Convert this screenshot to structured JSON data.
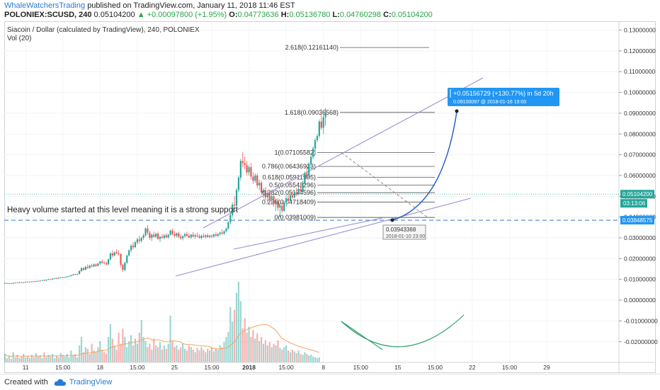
{
  "header": {
    "author": "WhaleWatchersTrading",
    "published_text": "published on TradingView.com, January 11, 2018 11:46 EST",
    "symbol": "POLONIEX:SCUSD, 240",
    "last": "0.05104200",
    "change": "▲ +0.00097800 (+1.95%)",
    "o_label": "O:",
    "o_val": "0.04773636",
    "h_label": "H:",
    "h_val": "0.05136780",
    "l_label": "L:",
    "l_val": "0.04760298",
    "c_label": "C:",
    "c_val": "0.05104200"
  },
  "legend": {
    "title": "Siacoin / Dollar (calculated by TradingView), 240, POLONIEX",
    "vol": "Vol (20)"
  },
  "annotation": "Heavy volume started at this level meaning it is a strong support",
  "footer": {
    "created_with": "Created with",
    "brand": "TradingView"
  },
  "colors": {
    "up": "#26a69a",
    "down": "#ef5350",
    "channel": "#9b8fd4",
    "arc": "#2a62c4",
    "support": "#5b8fd6",
    "price_line": "#26a69a",
    "volume_ma": "#f4a460"
  },
  "chart_data": {
    "type": "candlestick",
    "title": "Siacoin / Dollar (calculated by TradingView), 240, POLONIEX",
    "ylim": [
      -0.027,
      0.135
    ],
    "y_ticks": [
      "0.13000000",
      "0.12000000",
      "0.11000000",
      "0.10000000",
      "0.09000000",
      "0.08000000",
      "0.07000000",
      "0.06000000",
      "0.05000000",
      "0.04000000",
      "0.03000000",
      "0.02000000",
      "0.01000000",
      "0.00000000",
      "-0.01000000",
      "-0.02000000"
    ],
    "y_tick_values": [
      0.13,
      0.12,
      0.11,
      0.1,
      0.09,
      0.08,
      0.07,
      0.06,
      0.05,
      0.04,
      0.03,
      0.02,
      0.01,
      0.0,
      -0.01,
      -0.02
    ],
    "x_ticks": [
      "11",
      "15:00",
      "18",
      "15:00",
      "25",
      "15:00",
      "2018",
      "15:00",
      "8",
      "15:00",
      "15",
      "15:00",
      "22",
      "15:00",
      "29"
    ],
    "x_tick_bars": [
      10,
      28,
      46,
      64,
      82,
      100,
      118,
      136,
      154,
      172,
      190,
      208,
      226,
      244,
      262
    ],
    "current_price": "0.05104200",
    "countdown": "03:13:06",
    "support_price": "0.03848575",
    "fib_levels": [
      {
        "label": "2.618(0.12161140)",
        "value": 0.1216114
      },
      {
        "label": "1.618(0.09036568)",
        "value": 0.09036568
      },
      {
        "label": "1(0.07105582)",
        "value": 0.07105582
      },
      {
        "label": "0.786(0.06436923)",
        "value": 0.06436923
      },
      {
        "label": "0.618(0.05911995)",
        "value": 0.05911995
      },
      {
        "label": "0.5(0.05543296)",
        "value": 0.05543296
      },
      {
        "label": "0.382(0.05174596)",
        "value": 0.05174596
      },
      {
        "label": "0.236(0.04718409)",
        "value": 0.04718409
      },
      {
        "label": "0(0.03981009)",
        "value": 0.03981009
      }
    ],
    "measure_label": "+0.05156729 (+130.77%) in 5d 20h",
    "measure_sub": "0.09100097  @ 2018-01-16  19:00",
    "low_label": "0.03943368",
    "low_date": "2018-01-10 23:00",
    "candles": [
      [
        0.008,
        0.0085,
        0.0078,
        0.0082
      ],
      [
        0.0082,
        0.0084,
        0.0079,
        0.008
      ],
      [
        0.008,
        0.0083,
        0.0078,
        0.0081
      ],
      [
        0.0081,
        0.0083,
        0.0079,
        0.0079
      ],
      [
        0.0079,
        0.0084,
        0.0078,
        0.0083
      ],
      [
        0.0083,
        0.0086,
        0.0081,
        0.0084
      ],
      [
        0.0084,
        0.0087,
        0.0082,
        0.0083
      ],
      [
        0.0083,
        0.0088,
        0.0082,
        0.0086
      ],
      [
        0.0086,
        0.0088,
        0.0083,
        0.0084
      ],
      [
        0.0084,
        0.0087,
        0.0082,
        0.0086
      ],
      [
        0.0086,
        0.009,
        0.0084,
        0.0088
      ],
      [
        0.0088,
        0.009,
        0.0085,
        0.0086
      ],
      [
        0.0086,
        0.0089,
        0.0084,
        0.0088
      ],
      [
        0.0088,
        0.0092,
        0.0086,
        0.009
      ],
      [
        0.009,
        0.0093,
        0.0087,
        0.0089
      ],
      [
        0.0089,
        0.0093,
        0.0087,
        0.0092
      ],
      [
        0.0092,
        0.0095,
        0.0089,
        0.0091
      ],
      [
        0.0091,
        0.0095,
        0.0089,
        0.0094
      ],
      [
        0.0094,
        0.0098,
        0.0092,
        0.0096
      ],
      [
        0.0096,
        0.0099,
        0.0093,
        0.0094
      ],
      [
        0.0094,
        0.01,
        0.0093,
        0.0098
      ],
      [
        0.0098,
        0.0103,
        0.0096,
        0.0101
      ],
      [
        0.0101,
        0.0104,
        0.0098,
        0.0099
      ],
      [
        0.0099,
        0.0105,
        0.0098,
        0.0103
      ],
      [
        0.0103,
        0.0108,
        0.0101,
        0.0106
      ],
      [
        0.0106,
        0.0109,
        0.0103,
        0.0104
      ],
      [
        0.0104,
        0.011,
        0.0103,
        0.0108
      ],
      [
        0.0108,
        0.0112,
        0.0106,
        0.011
      ],
      [
        0.011,
        0.0113,
        0.0107,
        0.0108
      ],
      [
        0.0108,
        0.0113,
        0.0107,
        0.0111
      ],
      [
        0.0111,
        0.0116,
        0.0109,
        0.0114
      ],
      [
        0.0114,
        0.0118,
        0.0112,
        0.0116
      ],
      [
        0.0116,
        0.0122,
        0.0114,
        0.012
      ],
      [
        0.012,
        0.0126,
        0.0118,
        0.0124
      ],
      [
        0.0124,
        0.0128,
        0.012,
        0.0122
      ],
      [
        0.0122,
        0.0128,
        0.0121,
        0.0126
      ],
      [
        0.0126,
        0.0145,
        0.0124,
        0.014
      ],
      [
        0.014,
        0.016,
        0.0136,
        0.0154
      ],
      [
        0.0154,
        0.0158,
        0.0142,
        0.0146
      ],
      [
        0.0146,
        0.0165,
        0.0144,
        0.016
      ],
      [
        0.016,
        0.0172,
        0.015,
        0.0155
      ],
      [
        0.0155,
        0.017,
        0.0152,
        0.0166
      ],
      [
        0.0166,
        0.0175,
        0.0158,
        0.0162
      ],
      [
        0.0162,
        0.0176,
        0.016,
        0.0172
      ],
      [
        0.0172,
        0.0178,
        0.016,
        0.0165
      ],
      [
        0.0165,
        0.018,
        0.0163,
        0.0176
      ],
      [
        0.0176,
        0.019,
        0.017,
        0.0186
      ],
      [
        0.0186,
        0.0195,
        0.0175,
        0.018
      ],
      [
        0.018,
        0.0188,
        0.0172,
        0.0178
      ],
      [
        0.0178,
        0.0186,
        0.0168,
        0.0172
      ],
      [
        0.0172,
        0.02,
        0.017,
        0.0196
      ],
      [
        0.0196,
        0.023,
        0.0192,
        0.0225
      ],
      [
        0.0225,
        0.024,
        0.0205,
        0.0215
      ],
      [
        0.0215,
        0.0235,
        0.021,
        0.023
      ],
      [
        0.023,
        0.0245,
        0.022,
        0.0226
      ],
      [
        0.0226,
        0.024,
        0.0215,
        0.0222
      ],
      [
        0.0222,
        0.0225,
        0.016,
        0.017
      ],
      [
        0.017,
        0.0175,
        0.0135,
        0.0145
      ],
      [
        0.0145,
        0.0185,
        0.014,
        0.018
      ],
      [
        0.018,
        0.022,
        0.0175,
        0.0215
      ],
      [
        0.0215,
        0.0245,
        0.021,
        0.024
      ],
      [
        0.024,
        0.027,
        0.023,
        0.0262
      ],
      [
        0.0262,
        0.028,
        0.0245,
        0.0255
      ],
      [
        0.0255,
        0.0285,
        0.025,
        0.0278
      ],
      [
        0.0278,
        0.03,
        0.0268,
        0.0292
      ],
      [
        0.0292,
        0.031,
        0.0272,
        0.0285
      ],
      [
        0.0285,
        0.0305,
        0.0276,
        0.03
      ],
      [
        0.03,
        0.032,
        0.029,
        0.0312
      ],
      [
        0.0312,
        0.035,
        0.0305,
        0.0345
      ],
      [
        0.0345,
        0.036,
        0.0315,
        0.0325
      ],
      [
        0.0325,
        0.0335,
        0.029,
        0.03
      ],
      [
        0.03,
        0.032,
        0.0285,
        0.0315
      ],
      [
        0.0315,
        0.033,
        0.03,
        0.0305
      ],
      [
        0.0305,
        0.0325,
        0.0298,
        0.032
      ],
      [
        0.032,
        0.033,
        0.029,
        0.0295
      ],
      [
        0.0295,
        0.031,
        0.028,
        0.0305
      ],
      [
        0.0305,
        0.032,
        0.0295,
        0.03
      ],
      [
        0.03,
        0.0318,
        0.0292,
        0.0312
      ],
      [
        0.0312,
        0.0322,
        0.0298,
        0.0302
      ],
      [
        0.0302,
        0.032,
        0.0295,
        0.0315
      ],
      [
        0.0315,
        0.034,
        0.031,
        0.0335
      ],
      [
        0.0335,
        0.0345,
        0.0312,
        0.0318
      ],
      [
        0.0318,
        0.0332,
        0.03,
        0.031
      ],
      [
        0.031,
        0.0326,
        0.0302,
        0.0322
      ],
      [
        0.0322,
        0.033,
        0.0298,
        0.0305
      ],
      [
        0.0305,
        0.0318,
        0.029,
        0.0298
      ],
      [
        0.0298,
        0.0312,
        0.0288,
        0.0308
      ],
      [
        0.0308,
        0.0325,
        0.03,
        0.0318
      ],
      [
        0.0318,
        0.033,
        0.0305,
        0.031
      ],
      [
        0.031,
        0.0322,
        0.0298,
        0.0302
      ],
      [
        0.0302,
        0.0318,
        0.0295,
        0.0315
      ],
      [
        0.0315,
        0.0328,
        0.0302,
        0.0306
      ],
      [
        0.0306,
        0.032,
        0.0296,
        0.0312
      ],
      [
        0.0312,
        0.0325,
        0.0302,
        0.0308
      ],
      [
        0.0308,
        0.0318,
        0.0296,
        0.03
      ],
      [
        0.03,
        0.0315,
        0.0292,
        0.031
      ],
      [
        0.031,
        0.0322,
        0.03,
        0.0305
      ],
      [
        0.0305,
        0.0316,
        0.0296,
        0.0312
      ],
      [
        0.0312,
        0.032,
        0.03,
        0.0304
      ],
      [
        0.0304,
        0.0315,
        0.0298,
        0.031
      ],
      [
        0.031,
        0.0318,
        0.03,
        0.0306
      ],
      [
        0.0306,
        0.032,
        0.03,
        0.0316
      ],
      [
        0.0316,
        0.0326,
        0.0305,
        0.031
      ],
      [
        0.031,
        0.0322,
        0.0304,
        0.0318
      ],
      [
        0.0318,
        0.033,
        0.031,
        0.0325
      ],
      [
        0.0325,
        0.034,
        0.0315,
        0.032
      ],
      [
        0.032,
        0.0336,
        0.0314,
        0.0332
      ],
      [
        0.0332,
        0.035,
        0.0325,
        0.0345
      ],
      [
        0.0345,
        0.038,
        0.034,
        0.0375
      ],
      [
        0.0375,
        0.042,
        0.0365,
        0.041
      ],
      [
        0.041,
        0.047,
        0.04,
        0.046
      ],
      [
        0.046,
        0.05,
        0.044,
        0.0455
      ],
      [
        0.0455,
        0.054,
        0.045,
        0.053
      ],
      [
        0.053,
        0.06,
        0.052,
        0.059
      ],
      [
        0.059,
        0.068,
        0.0575,
        0.067
      ],
      [
        0.067,
        0.0712,
        0.064,
        0.066
      ],
      [
        0.066,
        0.069,
        0.063,
        0.065
      ],
      [
        0.065,
        0.067,
        0.06,
        0.0615
      ],
      [
        0.0615,
        0.065,
        0.06,
        0.064
      ],
      [
        0.064,
        0.066,
        0.058,
        0.0595
      ],
      [
        0.0595,
        0.0615,
        0.056,
        0.0575
      ],
      [
        0.0575,
        0.061,
        0.0565,
        0.06
      ],
      [
        0.06,
        0.061,
        0.054,
        0.0552
      ],
      [
        0.0552,
        0.058,
        0.053,
        0.0565
      ],
      [
        0.0565,
        0.0575,
        0.0505,
        0.0518
      ],
      [
        0.0518,
        0.054,
        0.049,
        0.053
      ],
      [
        0.053,
        0.0545,
        0.048,
        0.0495
      ],
      [
        0.0495,
        0.0525,
        0.047,
        0.0515
      ],
      [
        0.0515,
        0.053,
        0.0468,
        0.0482
      ],
      [
        0.0482,
        0.051,
        0.046,
        0.05
      ],
      [
        0.05,
        0.0512,
        0.045,
        0.0462
      ],
      [
        0.0462,
        0.049,
        0.043,
        0.0475
      ],
      [
        0.0475,
        0.049,
        0.043,
        0.0445
      ],
      [
        0.0445,
        0.047,
        0.0398,
        0.0455
      ],
      [
        0.0455,
        0.047,
        0.042,
        0.043
      ],
      [
        0.043,
        0.048,
        0.0425,
        0.047
      ],
      [
        0.047,
        0.0505,
        0.045,
        0.049
      ],
      [
        0.049,
        0.0512,
        0.047,
        0.0478
      ],
      [
        0.0478,
        0.0515,
        0.0472,
        0.0505
      ],
      [
        0.0505,
        0.0525,
        0.0488,
        0.0495
      ],
      [
        0.0495,
        0.053,
        0.049,
        0.052
      ],
      [
        0.052,
        0.054,
        0.05,
        0.051
      ],
      [
        0.051,
        0.0545,
        0.0505,
        0.0535
      ],
      [
        0.0535,
        0.056,
        0.052,
        0.0525
      ],
      [
        0.0525,
        0.0575,
        0.052,
        0.0565
      ],
      [
        0.0565,
        0.062,
        0.0555,
        0.061
      ],
      [
        0.061,
        0.065,
        0.058,
        0.06
      ],
      [
        0.06,
        0.0665,
        0.059,
        0.0655
      ],
      [
        0.0655,
        0.07,
        0.063,
        0.069
      ],
      [
        0.069,
        0.074,
        0.068,
        0.073
      ],
      [
        0.073,
        0.078,
        0.07,
        0.077
      ],
      [
        0.077,
        0.08,
        0.076,
        0.079
      ],
      [
        0.079,
        0.087,
        0.078,
        0.086
      ],
      [
        0.086,
        0.092,
        0.082,
        0.083
      ],
      [
        0.083,
        0.09,
        0.08,
        0.088
      ],
      [
        0.088,
        0.0925,
        0.084,
        0.09
      ]
    ],
    "volume_norm": [
      0.1,
      0.05,
      0.08,
      0.04,
      0.12,
      0.06,
      0.09,
      0.05,
      0.07,
      0.1,
      0.06,
      0.08,
      0.05,
      0.09,
      0.06,
      0.11,
      0.07,
      0.08,
      0.05,
      0.12,
      0.06,
      0.09,
      0.07,
      0.1,
      0.05,
      0.08,
      0.06,
      0.11,
      0.09,
      0.07,
      0.1,
      0.06,
      0.14,
      0.08,
      0.1,
      0.06,
      0.2,
      0.3,
      0.12,
      0.18,
      0.16,
      0.1,
      0.22,
      0.14,
      0.12,
      0.18,
      0.25,
      0.15,
      0.12,
      0.1,
      0.3,
      0.45,
      0.28,
      0.2,
      0.15,
      0.35,
      0.22,
      0.4,
      0.3,
      0.18,
      0.25,
      0.32,
      0.2,
      0.28,
      0.22,
      0.35,
      0.5,
      0.3,
      0.25,
      0.18,
      0.22,
      0.15,
      0.28,
      0.2,
      0.18,
      0.24,
      0.15,
      0.2,
      0.16,
      0.22,
      0.55,
      0.25,
      0.18,
      0.2,
      0.15,
      0.18,
      0.22,
      0.16,
      0.14,
      0.2,
      0.18,
      0.15,
      0.12,
      0.17,
      0.14,
      0.18,
      0.15,
      0.12,
      0.16,
      0.14,
      0.18,
      0.13,
      0.16,
      0.15,
      0.2,
      0.18,
      0.24,
      0.3,
      0.36,
      0.65,
      0.48,
      0.62,
      0.82,
      0.95,
      0.72,
      0.4,
      0.52,
      0.35,
      0.42,
      0.3,
      0.38,
      0.28,
      0.34,
      0.25,
      0.3,
      0.22,
      0.26,
      0.2,
      0.24,
      0.18,
      0.22,
      0.2,
      0.26,
      0.17,
      0.15,
      0.18,
      0.2,
      0.14,
      0.12,
      0.15,
      0.13,
      0.11,
      0.14,
      0.1,
      0.09,
      0.12,
      0.1,
      0.08,
      0.09,
      0.07,
      0.06,
      0.05,
      0.06
    ]
  }
}
